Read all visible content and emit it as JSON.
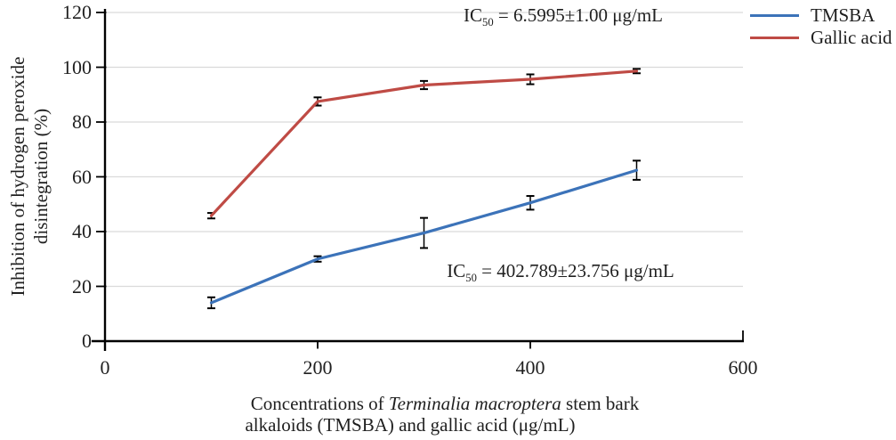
{
  "figure": {
    "background": "#ffffff",
    "text_color": "#1f1f1f",
    "grid_color": "#dadada",
    "axis_color": "#000000",
    "error_bar_color": "#000000"
  },
  "chart_data": {
    "type": "line",
    "title": "",
    "xlabel": "Concentrations of Terminalia macroptera stem bark alkaloids (TMSBA) and gallic acid (μg/mL)",
    "ylabel": "Inhibition of hydrogen peroxide disintegration (%)",
    "xlim": [
      0,
      600
    ],
    "ylim": [
      0,
      120
    ],
    "xticks": [
      0,
      200,
      400,
      600
    ],
    "yticks": [
      0,
      20,
      40,
      60,
      80,
      100,
      120
    ],
    "grid": "horizontal",
    "legend_position": "top-right-outside",
    "x": [
      100,
      200,
      300,
      400,
      500
    ],
    "series": [
      {
        "name": "TMSBA",
        "color": "#3C73B9",
        "values": [
          14,
          30,
          39.5,
          50.5,
          62.4
        ],
        "errors": [
          2,
          1,
          5.5,
          2.5,
          3.5
        ]
      },
      {
        "name": "Gallic acid",
        "color": "#BF4B45",
        "values": [
          45.8,
          87.5,
          93.5,
          95.6,
          98.6
        ],
        "errors": [
          1,
          1.5,
          1.5,
          1.8,
          0.8
        ]
      }
    ],
    "annotations": [
      {
        "series": "Gallic acid",
        "prefix": "IC",
        "sub": "50",
        "rest": " = 6.5995±1.00 μg/mL"
      },
      {
        "series": "TMSBA",
        "prefix": "IC",
        "sub": "50",
        "rest": " = 402.789±23.756 μg/mL"
      }
    ]
  },
  "labels": {
    "ylabel_line1": "Inhibition of hydrogen peroxide",
    "ylabel_line2": "disintegration (%)",
    "xlabel_pre": "Concentrations of ",
    "xlabel_italic": "Terminalia macroptera",
    "xlabel_post": " stem bark",
    "xlabel_line2": "alkaloids (TMSBA) and gallic acid (μg/mL)"
  }
}
